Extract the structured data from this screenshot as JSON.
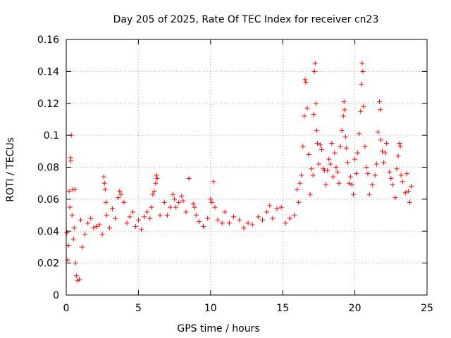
{
  "chart_data": {
    "type": "scatter",
    "title": "Day 205 of 2025, Rate Of TEC Index for receiver cn23",
    "xlabel": "GPS time / hours",
    "ylabel": "ROTI / TECUs",
    "xlim": [
      0,
      25
    ],
    "ylim": [
      0,
      0.16
    ],
    "xticks": [
      0,
      5,
      10,
      15,
      20,
      25
    ],
    "xtick_labels": [
      "0",
      "5",
      "10",
      "15",
      "20",
      "25"
    ],
    "yticks": [
      0,
      0.02,
      0.04,
      0.06,
      0.08,
      0.1,
      0.12,
      0.14,
      0.16
    ],
    "ytick_labels": [
      "0",
      "0.02",
      "0.04",
      "0.06",
      "0.08",
      "0.1",
      "0.12",
      "0.14",
      "0.16"
    ],
    "grid": true,
    "marker": "+",
    "color": "#ff0000",
    "series": [
      {
        "name": "ROTI",
        "points": [
          [
            0.05,
            0.039
          ],
          [
            0.1,
            0.022
          ],
          [
            0.15,
            0.031
          ],
          [
            0.2,
            0.065
          ],
          [
            0.25,
            0.055
          ],
          [
            0.3,
            0.086
          ],
          [
            0.32,
            0.084
          ],
          [
            0.35,
            0.1
          ],
          [
            0.4,
            0.05
          ],
          [
            0.45,
            0.066
          ],
          [
            0.5,
            0.035
          ],
          [
            0.55,
            0.042
          ],
          [
            0.6,
            0.066
          ],
          [
            0.65,
            0.02
          ],
          [
            0.7,
            0.012
          ],
          [
            0.8,
            0.009
          ],
          [
            0.9,
            0.01
          ],
          [
            1.0,
            0.047
          ],
          [
            1.1,
            0.03
          ],
          [
            1.3,
            0.038
          ],
          [
            1.5,
            0.045
          ],
          [
            1.7,
            0.048
          ],
          [
            1.9,
            0.042
          ],
          [
            2.1,
            0.043
          ],
          [
            2.3,
            0.044
          ],
          [
            2.5,
            0.038
          ],
          [
            2.6,
            0.074
          ],
          [
            2.65,
            0.07
          ],
          [
            2.7,
            0.066
          ],
          [
            2.75,
            0.058
          ],
          [
            2.8,
            0.05
          ],
          [
            3.0,
            0.042
          ],
          [
            3.2,
            0.054
          ],
          [
            3.4,
            0.048
          ],
          [
            3.6,
            0.061
          ],
          [
            3.7,
            0.065
          ],
          [
            3.8,
            0.063
          ],
          [
            4.0,
            0.058
          ],
          [
            4.2,
            0.045
          ],
          [
            4.4,
            0.049
          ],
          [
            4.6,
            0.052
          ],
          [
            4.8,
            0.043
          ],
          [
            5.0,
            0.047
          ],
          [
            5.2,
            0.041
          ],
          [
            5.4,
            0.049
          ],
          [
            5.6,
            0.052
          ],
          [
            5.8,
            0.048
          ],
          [
            5.9,
            0.055
          ],
          [
            6.0,
            0.063
          ],
          [
            6.1,
            0.065
          ],
          [
            6.2,
            0.07
          ],
          [
            6.25,
            0.075
          ],
          [
            6.3,
            0.073
          ],
          [
            6.5,
            0.05
          ],
          [
            6.8,
            0.058
          ],
          [
            7.0,
            0.05
          ],
          [
            7.2,
            0.055
          ],
          [
            7.4,
            0.063
          ],
          [
            7.5,
            0.06
          ],
          [
            7.6,
            0.055
          ],
          [
            7.8,
            0.058
          ],
          [
            8.0,
            0.062
          ],
          [
            8.1,
            0.059
          ],
          [
            8.3,
            0.052
          ],
          [
            8.5,
            0.073
          ],
          [
            8.8,
            0.057
          ],
          [
            8.9,
            0.055
          ],
          [
            9.0,
            0.05
          ],
          [
            9.2,
            0.046
          ],
          [
            9.5,
            0.043
          ],
          [
            9.8,
            0.048
          ],
          [
            10.0,
            0.06
          ],
          [
            10.1,
            0.058
          ],
          [
            10.2,
            0.071
          ],
          [
            10.3,
            0.055
          ],
          [
            10.5,
            0.047
          ],
          [
            10.8,
            0.045
          ],
          [
            11.0,
            0.052
          ],
          [
            11.3,
            0.045
          ],
          [
            11.6,
            0.049
          ],
          [
            12.0,
            0.047
          ],
          [
            12.3,
            0.042
          ],
          [
            12.6,
            0.045
          ],
          [
            12.9,
            0.044
          ],
          [
            13.3,
            0.049
          ],
          [
            13.6,
            0.047
          ],
          [
            13.9,
            0.052
          ],
          [
            14.1,
            0.056
          ],
          [
            14.3,
            0.048
          ],
          [
            14.6,
            0.054
          ],
          [
            14.9,
            0.055
          ],
          [
            15.2,
            0.045
          ],
          [
            15.5,
            0.048
          ],
          [
            15.8,
            0.05
          ],
          [
            16.0,
            0.066
          ],
          [
            16.1,
            0.058
          ],
          [
            16.2,
            0.07
          ],
          [
            16.3,
            0.075
          ],
          [
            16.4,
            0.093
          ],
          [
            16.5,
            0.112
          ],
          [
            16.55,
            0.135
          ],
          [
            16.6,
            0.133
          ],
          [
            16.7,
            0.117
          ],
          [
            16.8,
            0.088
          ],
          [
            16.9,
            0.063
          ],
          [
            17.0,
            0.079
          ],
          [
            17.1,
            0.075
          ],
          [
            17.15,
            0.113
          ],
          [
            17.2,
            0.14
          ],
          [
            17.25,
            0.145
          ],
          [
            17.3,
            0.12
          ],
          [
            17.35,
            0.103
          ],
          [
            17.4,
            0.095
          ],
          [
            17.5,
            0.082
          ],
          [
            17.6,
            0.094
          ],
          [
            17.7,
            0.091
          ],
          [
            17.8,
            0.079
          ],
          [
            17.9,
            0.078
          ],
          [
            18.0,
            0.069
          ],
          [
            18.1,
            0.078
          ],
          [
            18.2,
            0.085
          ],
          [
            18.3,
            0.082
          ],
          [
            18.4,
            0.095
          ],
          [
            18.5,
            0.074
          ],
          [
            18.6,
            0.089
          ],
          [
            18.7,
            0.08
          ],
          [
            18.8,
            0.077
          ],
          [
            18.9,
            0.07
          ],
          [
            19.0,
            0.093
          ],
          [
            19.1,
            0.103
          ],
          [
            19.2,
            0.112
          ],
          [
            19.25,
            0.121
          ],
          [
            19.3,
            0.116
          ],
          [
            19.35,
            0.099
          ],
          [
            19.4,
            0.092
          ],
          [
            19.5,
            0.083
          ],
          [
            19.6,
            0.07
          ],
          [
            19.7,
            0.074
          ],
          [
            19.8,
            0.069
          ],
          [
            19.9,
            0.063
          ],
          [
            20.0,
            0.085
          ],
          [
            20.1,
            0.076
          ],
          [
            20.2,
            0.089
          ],
          [
            20.3,
            0.101
          ],
          [
            20.4,
            0.115
          ],
          [
            20.45,
            0.132
          ],
          [
            20.5,
            0.145
          ],
          [
            20.55,
            0.14
          ],
          [
            20.6,
            0.118
          ],
          [
            20.7,
            0.093
          ],
          [
            20.8,
            0.08
          ],
          [
            20.9,
            0.076
          ],
          [
            21.0,
            0.063
          ],
          [
            21.2,
            0.069
          ],
          [
            21.4,
            0.075
          ],
          [
            21.5,
            0.082
          ],
          [
            21.6,
            0.102
          ],
          [
            21.7,
            0.121
          ],
          [
            21.75,
            0.116
          ],
          [
            21.8,
            0.097
          ],
          [
            21.9,
            0.09
          ],
          [
            22.0,
            0.083
          ],
          [
            22.1,
            0.089
          ],
          [
            22.2,
            0.095
          ],
          [
            22.4,
            0.077
          ],
          [
            22.5,
            0.073
          ],
          [
            22.6,
            0.069
          ],
          [
            22.8,
            0.061
          ],
          [
            22.9,
            0.079
          ],
          [
            23.0,
            0.087
          ],
          [
            23.1,
            0.095
          ],
          [
            23.15,
            0.093
          ],
          [
            23.2,
            0.075
          ],
          [
            23.3,
            0.071
          ],
          [
            23.5,
            0.064
          ],
          [
            23.6,
            0.076
          ],
          [
            23.7,
            0.065
          ],
          [
            23.8,
            0.058
          ],
          [
            23.9,
            0.068
          ]
        ]
      }
    ]
  }
}
